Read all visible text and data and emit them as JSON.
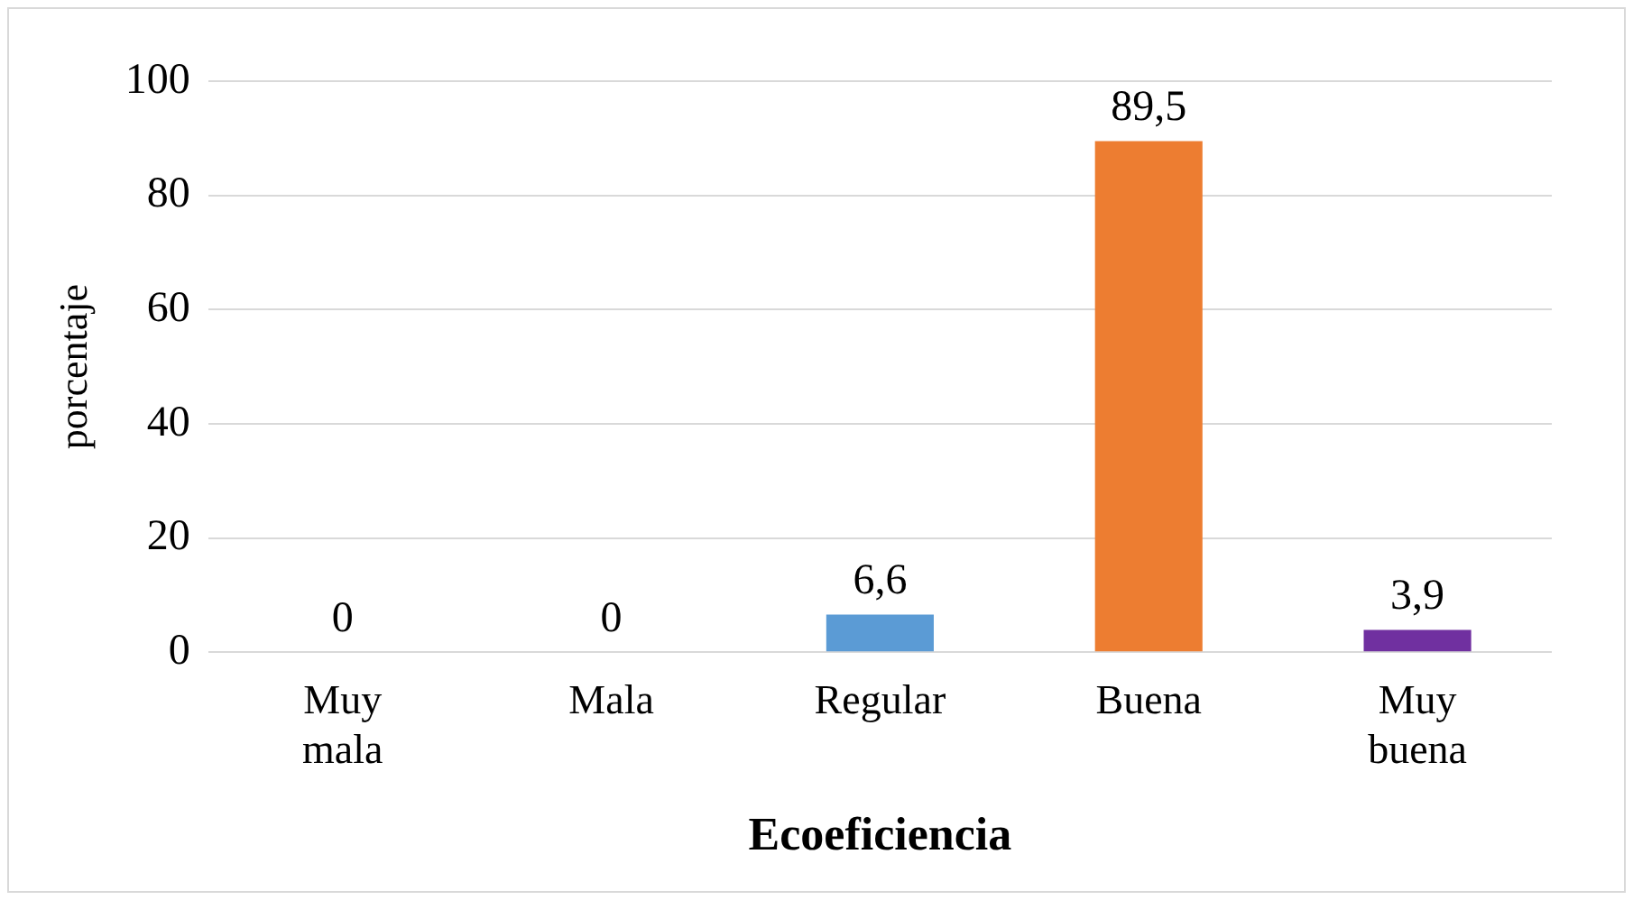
{
  "chart_data": {
    "type": "bar",
    "xlabel": "Ecoeficiencia",
    "ylabel": "porcentaje",
    "categories": [
      "Muy mala",
      "Mala",
      "Regular",
      "Buena",
      "Muy buena"
    ],
    "values": [
      0,
      0,
      6.6,
      89.5,
      3.9
    ],
    "colors": [
      "#990000",
      "#548235",
      "#5b9bd5",
      "#ed7d31",
      "#7030a0"
    ],
    "value_labels": [
      "0",
      "0",
      "6,6",
      "89,5",
      "3,9"
    ],
    "ylim": [
      0,
      100
    ],
    "yticks": [
      0,
      20,
      40,
      60,
      80,
      100
    ],
    "grid": "y",
    "legend": false
  }
}
